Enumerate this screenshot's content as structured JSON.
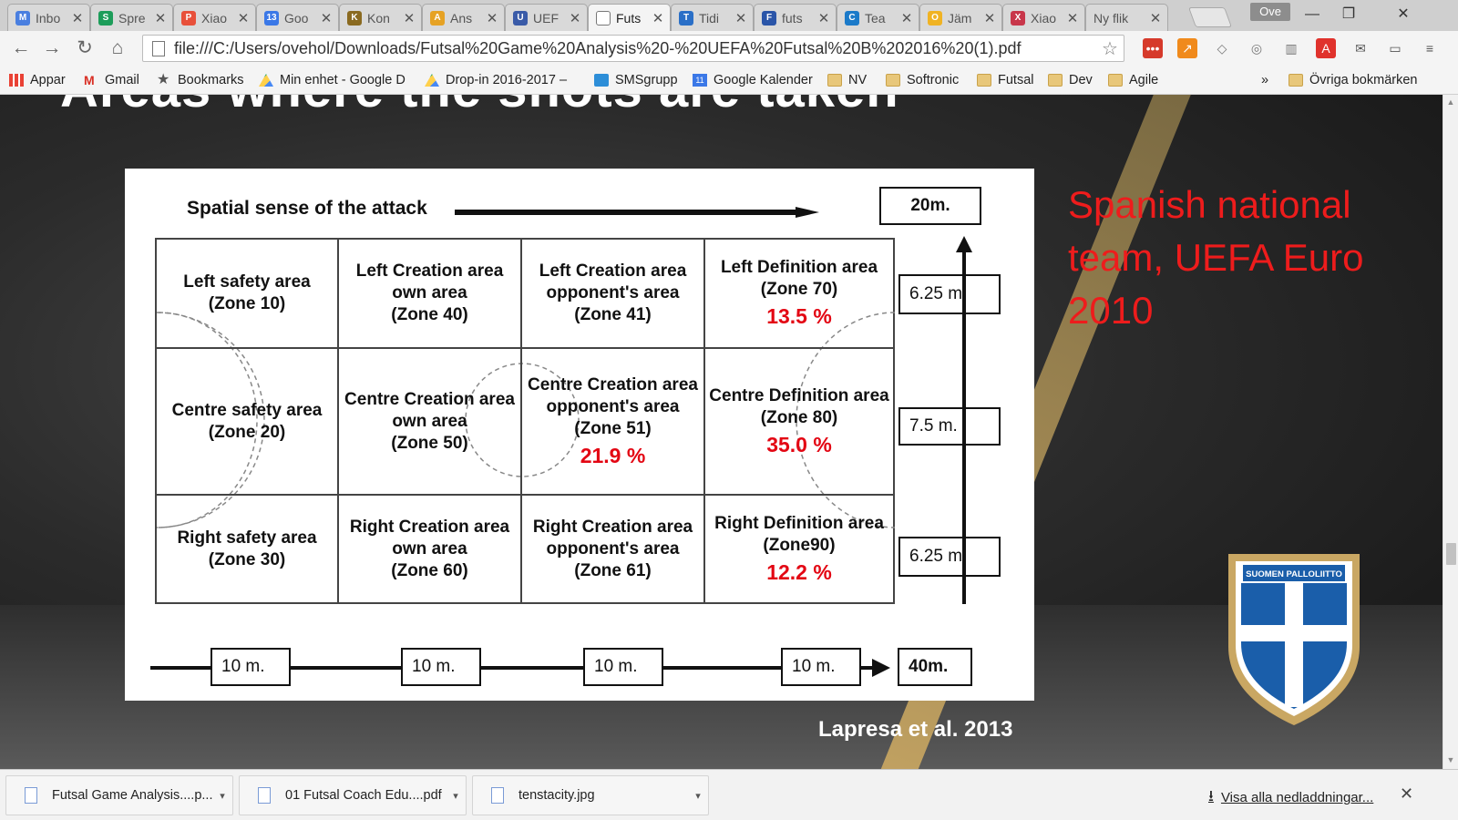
{
  "tabs": [
    {
      "label": "Inbo",
      "icon": "gmail-icon",
      "color": "#4a7fe0",
      "glyph": "M"
    },
    {
      "label": "Spre",
      "icon": "sheets-icon",
      "color": "#1d9d5a",
      "glyph": "S"
    },
    {
      "label": "Xiao",
      "icon": "pocket-icon",
      "color": "#e8503a",
      "glyph": "P"
    },
    {
      "label": "Goo",
      "icon": "calendar-icon",
      "color": "#3b78e7",
      "glyph": "13"
    },
    {
      "label": "Kon",
      "icon": "club-icon",
      "color": "#8a6a20",
      "glyph": "K"
    },
    {
      "label": "Ans",
      "icon": "chrome-app-icon",
      "color": "#e6a224",
      "glyph": "A"
    },
    {
      "label": "UEF",
      "icon": "uefa-icon",
      "color": "#3a5ba8",
      "glyph": "U"
    },
    {
      "label": "Futs",
      "icon": "pdf-page-icon",
      "color": "#ffffff",
      "glyph": ""
    },
    {
      "label": "Tidi",
      "icon": "flag-icon",
      "color": "#2a6fc7",
      "glyph": "T"
    },
    {
      "label": "futs",
      "icon": "flag-icon",
      "color": "#2a55a8",
      "glyph": "F"
    },
    {
      "label": "Tea",
      "icon": "teams-icon",
      "color": "#1b7ac9",
      "glyph": "C"
    },
    {
      "label": "Jäm",
      "icon": "target-icon",
      "color": "#f0b323",
      "glyph": "O"
    },
    {
      "label": "Xiao",
      "icon": "pocket-icon",
      "color": "#c8364a",
      "glyph": "X"
    },
    {
      "label": "Ny flik",
      "icon": "",
      "color": "",
      "glyph": ""
    }
  ],
  "profile_name": "Ove",
  "url": "file:///C:/Users/ovehol/Downloads/Futsal%20Game%20Analysis%20-%20UEFA%20Futsal%20B%202016%20(1).pdf",
  "bookmarks": [
    {
      "label": "Appar",
      "icon": "apps-grid-icon"
    },
    {
      "label": "Gmail",
      "icon": "gmail-icon"
    },
    {
      "label": "Bookmarks",
      "icon": "star-icon"
    },
    {
      "label": "Min enhet - Google D",
      "icon": "drive-icon"
    },
    {
      "label": "Drop-in 2016-2017 –",
      "icon": "drive-icon"
    },
    {
      "label": "SMSgrupp",
      "icon": "sms-icon"
    },
    {
      "label": "Google Kalender",
      "icon": "calendar-icon"
    },
    {
      "label": "NV",
      "icon": "folder-icon"
    },
    {
      "label": "Softronic",
      "icon": "folder-icon"
    },
    {
      "label": "Futsal",
      "icon": "folder-icon"
    },
    {
      "label": "Dev",
      "icon": "folder-icon"
    },
    {
      "label": "Agile",
      "icon": "folder-icon"
    }
  ],
  "bookmarks_overflow": "»",
  "other_bookmarks": "Övriga bokmärken",
  "slide": {
    "title": "Areas where the shots are taken",
    "side_note": "Spanish national team, UEFA Euro 2010",
    "citation": "Lapresa et al. 2013",
    "crest_text": "SUOMEN PALLOLIITTO"
  },
  "diagram": {
    "attack_label": "Spatial sense of the attack",
    "width_label": "20m.",
    "length_label": "40m.",
    "row_heights": [
      "6.25 m.",
      "7.5 m.",
      "6.25 m."
    ],
    "col_widths": [
      "10 m.",
      "10 m.",
      "10 m.",
      "10 m."
    ],
    "cells": [
      [
        {
          "name": "Left safety area\n(Zone 10)",
          "pct": ""
        },
        {
          "name": "Left Creation area\nown area\n(Zone 40)",
          "pct": ""
        },
        {
          "name": "Left Creation area\nopponent's area\n(Zone 41)",
          "pct": ""
        },
        {
          "name": "Left Definition area\n(Zone 70)",
          "pct": "13.5 %"
        }
      ],
      [
        {
          "name": "Centre safety area\n(Zone 20)",
          "pct": ""
        },
        {
          "name": "Centre Creation area\nown area\n(Zone 50)",
          "pct": ""
        },
        {
          "name": "Centre Creation area\nopponent's area\n(Zone 51)",
          "pct": "21.9 %"
        },
        {
          "name": "Centre Definition area\n(Zone 80)",
          "pct": "35.0 %"
        }
      ],
      [
        {
          "name": "Right safety area\n(Zone 30)",
          "pct": ""
        },
        {
          "name": "Right Creation area\nown area\n(Zone 60)",
          "pct": ""
        },
        {
          "name": "Right Creation area\nopponent's area\n(Zone 61)",
          "pct": ""
        },
        {
          "name": "Right Definition area\n(Zone90)",
          "pct": "12.2 %"
        }
      ]
    ]
  },
  "downloads": [
    {
      "name": "Futsal Game Analysis....p..."
    },
    {
      "name": "01 Futsal Coach Edu....pdf"
    },
    {
      "name": "tenstacity.jpg"
    }
  ],
  "show_all_downloads": "Visa alla nedladdningar...",
  "colors": {
    "accent_red": "#e30613",
    "note_red": "#ee1c1c",
    "gold": "#c9a763"
  }
}
